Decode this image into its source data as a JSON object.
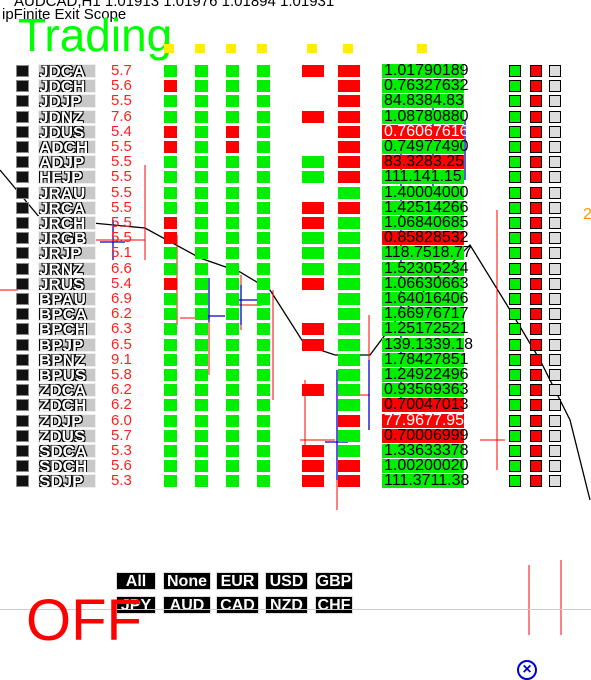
{
  "header": {
    "line1": "AUDCAD,H1 1.01913 1.01976 1.01894 1.01931",
    "line2": "ipFinite Exit Scope"
  },
  "status": {
    "trading": "Trading",
    "mode": "OFF",
    "side_value": "2"
  },
  "rows": [
    {
      "sym": "JDCA",
      "spread": "5.7",
      "cols": [
        "g",
        "g",
        "g",
        "g",
        "r",
        "r"
      ],
      "price": "1.01790189",
      "pc": "g",
      "pw": false
    },
    {
      "sym": "JDCH",
      "spread": "5.6",
      "cols": [
        "r",
        "g",
        "g",
        "g",
        "",
        "r"
      ],
      "price": "0.76327632",
      "pc": "g",
      "pw": false
    },
    {
      "sym": "JDJP",
      "spread": "5.5",
      "cols": [
        "g",
        "g",
        "g",
        "g",
        "",
        "r"
      ],
      "price": "84.8384.83",
      "pc": "g",
      "pw": false
    },
    {
      "sym": "JDNZ",
      "spread": "7.6",
      "cols": [
        "g",
        "g",
        "g",
        "g",
        "r",
        "r"
      ],
      "price": "1.08780880",
      "pc": "g",
      "pw": false
    },
    {
      "sym": "JDUS",
      "spread": "5.4",
      "cols": [
        "r",
        "g",
        "r",
        "g",
        "",
        "r"
      ],
      "price": "0.76067616",
      "pc": "r",
      "pw": true
    },
    {
      "sym": "ADCH",
      "spread": "5.5",
      "cols": [
        "r",
        "g",
        "r",
        "g",
        "",
        "r"
      ],
      "price": "0.74977490",
      "pc": "g",
      "pw": false
    },
    {
      "sym": "ADJP",
      "spread": "5.5",
      "cols": [
        "g",
        "g",
        "g",
        "g",
        "g",
        "r"
      ],
      "price": "83.3283.25",
      "pc": "r",
      "pw": false
    },
    {
      "sym": "HFJP",
      "spread": "5.5",
      "cols": [
        "g",
        "g",
        "g",
        "g",
        "g",
        "r"
      ],
      "price": "111.141.15",
      "pc": "g",
      "pw": false
    },
    {
      "sym": "JRAU",
      "spread": "5.5",
      "cols": [
        "g",
        "g",
        "g",
        "g",
        "",
        "g"
      ],
      "price": "1.40004000",
      "pc": "g",
      "pw": false
    },
    {
      "sym": "JRCA",
      "spread": "5.5",
      "cols": [
        "g",
        "g",
        "g",
        "g",
        "r",
        "r"
      ],
      "price": "1.42514266",
      "pc": "g",
      "pw": false
    },
    {
      "sym": "JRCH",
      "spread": "5.5",
      "cols": [
        "r",
        "g",
        "g",
        "g",
        "r",
        "g"
      ],
      "price": "1.06840685",
      "pc": "g",
      "pw": false
    },
    {
      "sym": "JRGB",
      "spread": "5.5",
      "cols": [
        "r",
        "g",
        "g",
        "g",
        "g",
        "g"
      ],
      "price": "0.85828532",
      "pc": "r",
      "pw": false
    },
    {
      "sym": "JRJP",
      "spread": "5.1",
      "cols": [
        "g",
        "g",
        "g",
        "g",
        "g",
        "g"
      ],
      "price": "118.7518.77",
      "pc": "g",
      "pw": false
    },
    {
      "sym": "JRNZ",
      "spread": "6.6",
      "cols": [
        "g",
        "g",
        "g",
        "g",
        "g",
        "g"
      ],
      "price": "1.52305234",
      "pc": "g",
      "pw": false
    },
    {
      "sym": "JRUS",
      "spread": "5.4",
      "cols": [
        "r",
        "g",
        "g",
        "g",
        "r",
        "g"
      ],
      "price": "1.06630663",
      "pc": "g",
      "pw": false
    },
    {
      "sym": "BPAU",
      "spread": "6.9",
      "cols": [
        "g",
        "g",
        "g",
        "g",
        "",
        "g"
      ],
      "price": "1.64016406",
      "pc": "g",
      "pw": false
    },
    {
      "sym": "BPCA",
      "spread": "6.2",
      "cols": [
        "g",
        "g",
        "g",
        "g",
        "",
        "g"
      ],
      "price": "1.66976717",
      "pc": "g",
      "pw": false
    },
    {
      "sym": "BPCH",
      "spread": "6.3",
      "cols": [
        "g",
        "g",
        "g",
        "g",
        "r",
        "g"
      ],
      "price": "1.25172521",
      "pc": "g",
      "pw": false
    },
    {
      "sym": "BPJP",
      "spread": "6.5",
      "cols": [
        "g",
        "g",
        "g",
        "g",
        "r",
        "g"
      ],
      "price": "139.1339.18",
      "pc": "g",
      "pw": false
    },
    {
      "sym": "BPNZ",
      "spread": "9.1",
      "cols": [
        "g",
        "g",
        "g",
        "g",
        "",
        "g"
      ],
      "price": "1.78427851",
      "pc": "g",
      "pw": false
    },
    {
      "sym": "BPUS",
      "spread": "5.8",
      "cols": [
        "g",
        "g",
        "g",
        "g",
        "",
        "g"
      ],
      "price": "1.24922496",
      "pc": "g",
      "pw": false
    },
    {
      "sym": "ZDCA",
      "spread": "6.2",
      "cols": [
        "g",
        "g",
        "g",
        "g",
        "r",
        "g"
      ],
      "price": "0.93569363",
      "pc": "g",
      "pw": false
    },
    {
      "sym": "ZDCH",
      "spread": "6.2",
      "cols": [
        "g",
        "g",
        "g",
        "g",
        "",
        "g"
      ],
      "price": "0.70047013",
      "pc": "r",
      "pw": false
    },
    {
      "sym": "ZDJP",
      "spread": "6.0",
      "cols": [
        "g",
        "g",
        "g",
        "g",
        "",
        "r"
      ],
      "price": "77.9677.95",
      "pc": "r",
      "pw": true
    },
    {
      "sym": "ZDUS",
      "spread": "5.7",
      "cols": [
        "g",
        "g",
        "g",
        "g",
        "",
        "g"
      ],
      "price": "0.70006999",
      "pc": "r",
      "pw": false
    },
    {
      "sym": "SDCA",
      "spread": "5.3",
      "cols": [
        "g",
        "g",
        "g",
        "g",
        "r",
        "g"
      ],
      "price": "1.33633378",
      "pc": "g",
      "pw": false
    },
    {
      "sym": "SDCH",
      "spread": "5.6",
      "cols": [
        "g",
        "g",
        "g",
        "g",
        "r",
        "r"
      ],
      "price": "1.00200020",
      "pc": "g",
      "pw": false
    },
    {
      "sym": "SDJP",
      "spread": "5.3",
      "cols": [
        "g",
        "g",
        "g",
        "g",
        "r",
        "r"
      ],
      "price": "111.3711.38",
      "pc": "g",
      "pw": false
    }
  ],
  "currency_buttons_row1": [
    "All",
    "None",
    "EUR",
    "USD",
    "GBP"
  ],
  "currency_buttons_row2": [
    "JPY",
    "AUD",
    "CAD",
    "NZD",
    "CHF"
  ],
  "colors": {
    "green": "#00ee00",
    "red": "#ff0000",
    "yellow": "#ffee00",
    "black": "#000000",
    "blue": "#0000cc"
  },
  "icons": {
    "close": "close-circle-icon"
  }
}
